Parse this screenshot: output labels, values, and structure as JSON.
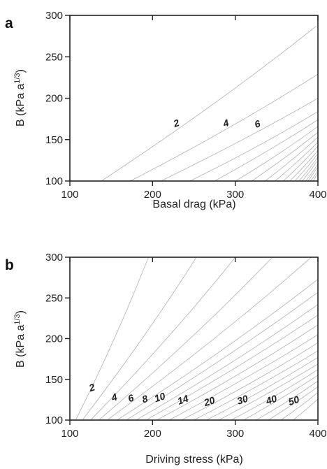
{
  "chart_data": [
    {
      "panel": "a",
      "type": "contour",
      "xlabel": "Basal drag  (kPa)",
      "ylabel": "B  (kPa a",
      "ylabel_sup": "1/3",
      "ylabel_end": ")",
      "xlim": [
        100,
        400
      ],
      "ylim": [
        100,
        300
      ],
      "xticks": [
        "100",
        "200",
        "300",
        "400"
      ],
      "yticks": [
        "100",
        "150",
        "200",
        "250",
        "300"
      ],
      "grid": false,
      "contour_labels": [
        {
          "text": "2",
          "x": 230,
          "y": 166
        },
        {
          "text": "4",
          "x": 290,
          "y": 166
        },
        {
          "text": "6",
          "x": 328,
          "y": 165
        }
      ],
      "contours": [
        {
          "x0": 138,
          "x1": 398,
          "y1": 287,
          "kind": "dense"
        },
        {
          "x0": 173,
          "x1": 400,
          "y1": 229
        },
        {
          "x0": 210,
          "x1": 400,
          "y1": 200
        },
        {
          "x0": 245,
          "x1": 400,
          "y1": 184
        },
        {
          "x0": 275,
          "x1": 400,
          "y1": 174
        },
        {
          "x0": 300,
          "x1": 400,
          "y1": 166
        },
        {
          "x0": 320,
          "x1": 400,
          "y1": 159
        },
        {
          "x0": 336,
          "x1": 400,
          "y1": 153
        },
        {
          "x0": 348,
          "x1": 400,
          "y1": 147
        },
        {
          "x0": 358,
          "x1": 400,
          "y1": 142
        },
        {
          "x0": 366,
          "x1": 400,
          "y1": 137
        },
        {
          "x0": 372,
          "x1": 400,
          "y1": 133
        },
        {
          "x0": 377,
          "x1": 400,
          "y1": 129
        },
        {
          "x0": 381,
          "x1": 400,
          "y1": 125
        },
        {
          "x0": 385,
          "x1": 400,
          "y1": 121
        },
        {
          "x0": 388,
          "x1": 400,
          "y1": 117
        },
        {
          "x0": 391,
          "x1": 400,
          "y1": 113
        },
        {
          "x0": 394,
          "x1": 400,
          "y1": 109
        }
      ]
    },
    {
      "panel": "b",
      "type": "contour",
      "xlabel": "Driving stress  (kPa)",
      "ylabel": "B  (kPa a",
      "ylabel_sup": "1/3",
      "ylabel_end": ")",
      "xlim": [
        100,
        400
      ],
      "ylim": [
        100,
        300
      ],
      "xticks": [
        "100",
        "200",
        "300",
        "400"
      ],
      "yticks": [
        "100",
        "150",
        "200",
        "250",
        "300"
      ],
      "grid": false,
      "contour_labels": [
        {
          "text": "2",
          "x": 128,
          "y": 136
        },
        {
          "text": "4",
          "x": 155,
          "y": 124
        },
        {
          "text": "6",
          "x": 175,
          "y": 123
        },
        {
          "text": "8",
          "x": 192,
          "y": 122
        },
        {
          "text": "10",
          "x": 210,
          "y": 124
        },
        {
          "text": "14",
          "x": 238,
          "y": 121
        },
        {
          "text": "20",
          "x": 270,
          "y": 119
        },
        {
          "text": "30",
          "x": 310,
          "y": 121
        },
        {
          "text": "40",
          "x": 345,
          "y": 121
        },
        {
          "text": "50",
          "x": 372,
          "y": 120
        }
      ],
      "contours": [
        {
          "x0": 107,
          "x1": 195,
          "y1": 300
        },
        {
          "x0": 115,
          "x1": 253,
          "y1": 300
        },
        {
          "x0": 125,
          "x1": 300,
          "y1": 300
        },
        {
          "x0": 135,
          "x1": 345,
          "y1": 300
        },
        {
          "x0": 145,
          "x1": 392,
          "y1": 300
        },
        {
          "x0": 157,
          "x1": 400,
          "y1": 273
        },
        {
          "x0": 168,
          "x1": 400,
          "y1": 257
        },
        {
          "x0": 180,
          "x1": 400,
          "y1": 242
        },
        {
          "x0": 192,
          "x1": 400,
          "y1": 229
        },
        {
          "x0": 205,
          "x1": 400,
          "y1": 217
        },
        {
          "x0": 220,
          "x1": 400,
          "y1": 205
        },
        {
          "x0": 235,
          "x1": 400,
          "y1": 195
        },
        {
          "x0": 250,
          "x1": 400,
          "y1": 185
        },
        {
          "x0": 265,
          "x1": 400,
          "y1": 177
        },
        {
          "x0": 280,
          "x1": 400,
          "y1": 169
        },
        {
          "x0": 295,
          "x1": 400,
          "y1": 162
        },
        {
          "x0": 310,
          "x1": 400,
          "y1": 155
        },
        {
          "x0": 325,
          "x1": 400,
          "y1": 148
        },
        {
          "x0": 340,
          "x1": 400,
          "y1": 141
        },
        {
          "x0": 355,
          "x1": 400,
          "y1": 134
        },
        {
          "x0": 370,
          "x1": 400,
          "y1": 126
        }
      ]
    }
  ]
}
